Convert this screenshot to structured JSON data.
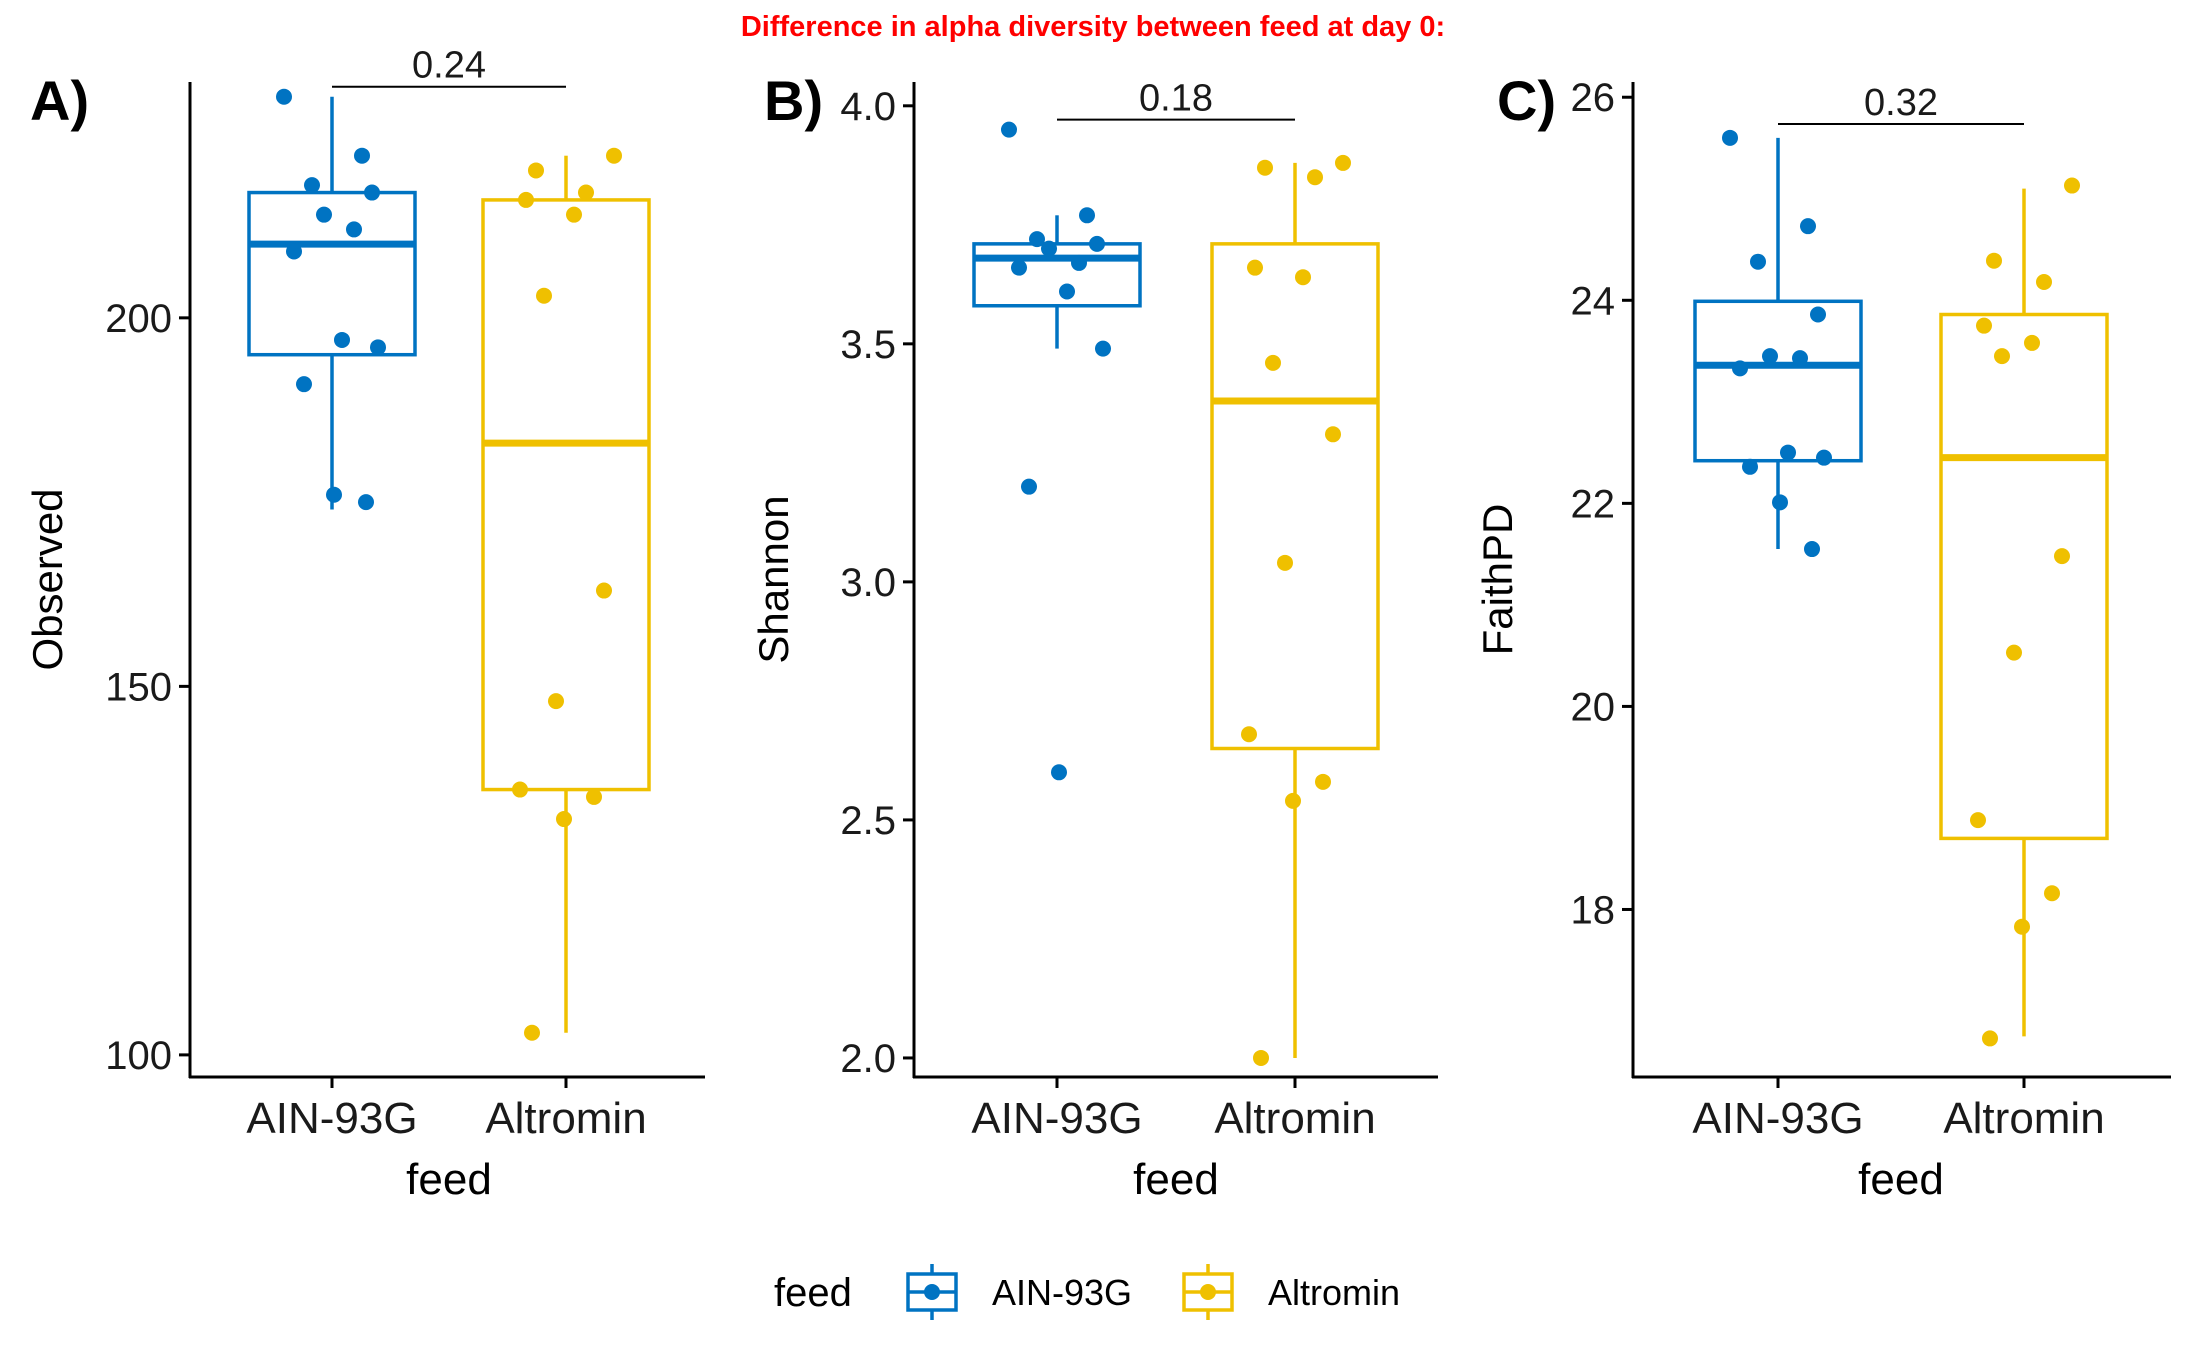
{
  "figure": {
    "suptitle": "Difference in alpha diversity between feed at day 0:",
    "suptitle_color": "#FF0000"
  },
  "legend": {
    "title": "feed",
    "position": "bottom",
    "entries": [
      {
        "label": "AIN-93G",
        "color": "#0073C2"
      },
      {
        "label": "Altromin",
        "color": "#EFC000"
      }
    ]
  },
  "chart_data": [
    {
      "type": "box",
      "panel_label": "A)",
      "xlabel": "feed",
      "ylabel": "Observed",
      "categories": [
        "AIN-93G",
        "Altromin"
      ],
      "colors": [
        "#0073C2",
        "#EFC000"
      ],
      "ylim": [
        97,
        232
      ],
      "yticks": [
        100,
        150,
        200
      ],
      "ytick_labels": [
        "100",
        "150",
        "200"
      ],
      "boxes": [
        {
          "min": 174,
          "q1": 195,
          "median": 210,
          "q3": 217,
          "max": 230
        },
        {
          "min": 103,
          "q1": 136,
          "median": 183,
          "q3": 216,
          "max": 222
        }
      ],
      "points": [
        [
          230,
          222,
          218,
          217,
          214,
          212,
          209,
          197,
          196,
          191,
          176,
          175
        ],
        [
          222,
          220,
          217,
          216,
          214,
          203,
          163,
          148,
          136,
          135,
          132,
          103
        ]
      ],
      "comparison": {
        "label": "0.24",
        "value": 0.24
      }
    },
    {
      "type": "box",
      "panel_label": "B)",
      "xlabel": "feed",
      "ylabel": "Shannon",
      "categories": [
        "AIN-93G",
        "Altromin"
      ],
      "colors": [
        "#0073C2",
        "#EFC000"
      ],
      "ylim": [
        1.96,
        4.05
      ],
      "yticks": [
        2.0,
        2.5,
        3.0,
        3.5,
        4.0
      ],
      "ytick_labels": [
        "2.0",
        "2.5",
        "3.0",
        "3.5",
        "4.0"
      ],
      "boxes": [
        {
          "min": 3.49,
          "q1": 3.58,
          "median": 3.68,
          "q3": 3.71,
          "max": 3.77
        },
        {
          "min": 2.0,
          "q1": 2.65,
          "median": 3.38,
          "q3": 3.71,
          "max": 3.88
        }
      ],
      "points": [
        [
          3.95,
          3.77,
          3.72,
          3.71,
          3.7,
          3.67,
          3.66,
          3.61,
          3.49,
          3.2,
          2.6
        ],
        [
          3.88,
          3.87,
          3.85,
          3.66,
          3.64,
          3.46,
          3.31,
          3.04,
          2.68,
          2.58,
          2.54,
          2.0
        ]
      ],
      "comparison": {
        "label": "0.18",
        "value": 0.18
      }
    },
    {
      "type": "box",
      "panel_label": "C)",
      "xlabel": "feed",
      "ylabel": "FaithPD",
      "categories": [
        "AIN-93G",
        "Altromin"
      ],
      "colors": [
        "#0073C2",
        "#EFC000"
      ],
      "ylim": [
        16.35,
        26.15
      ],
      "yticks": [
        18,
        20,
        22,
        24,
        26
      ],
      "ytick_labels": [
        "18",
        "20",
        "22",
        "24",
        "26"
      ],
      "boxes": [
        {
          "min": 21.55,
          "q1": 22.42,
          "median": 23.36,
          "q3": 23.99,
          "max": 25.6
        },
        {
          "min": 16.75,
          "q1": 18.7,
          "median": 22.45,
          "q3": 23.86,
          "max": 25.1
        }
      ],
      "points": [
        [
          25.6,
          24.73,
          24.38,
          23.86,
          23.45,
          23.43,
          23.33,
          22.5,
          22.45,
          22.36,
          22.01,
          21.55
        ],
        [
          25.13,
          24.39,
          24.18,
          23.75,
          23.58,
          23.45,
          21.48,
          20.53,
          18.88,
          18.16,
          17.83,
          16.73
        ]
      ],
      "comparison": {
        "label": "0.32",
        "value": 0.32
      }
    }
  ]
}
